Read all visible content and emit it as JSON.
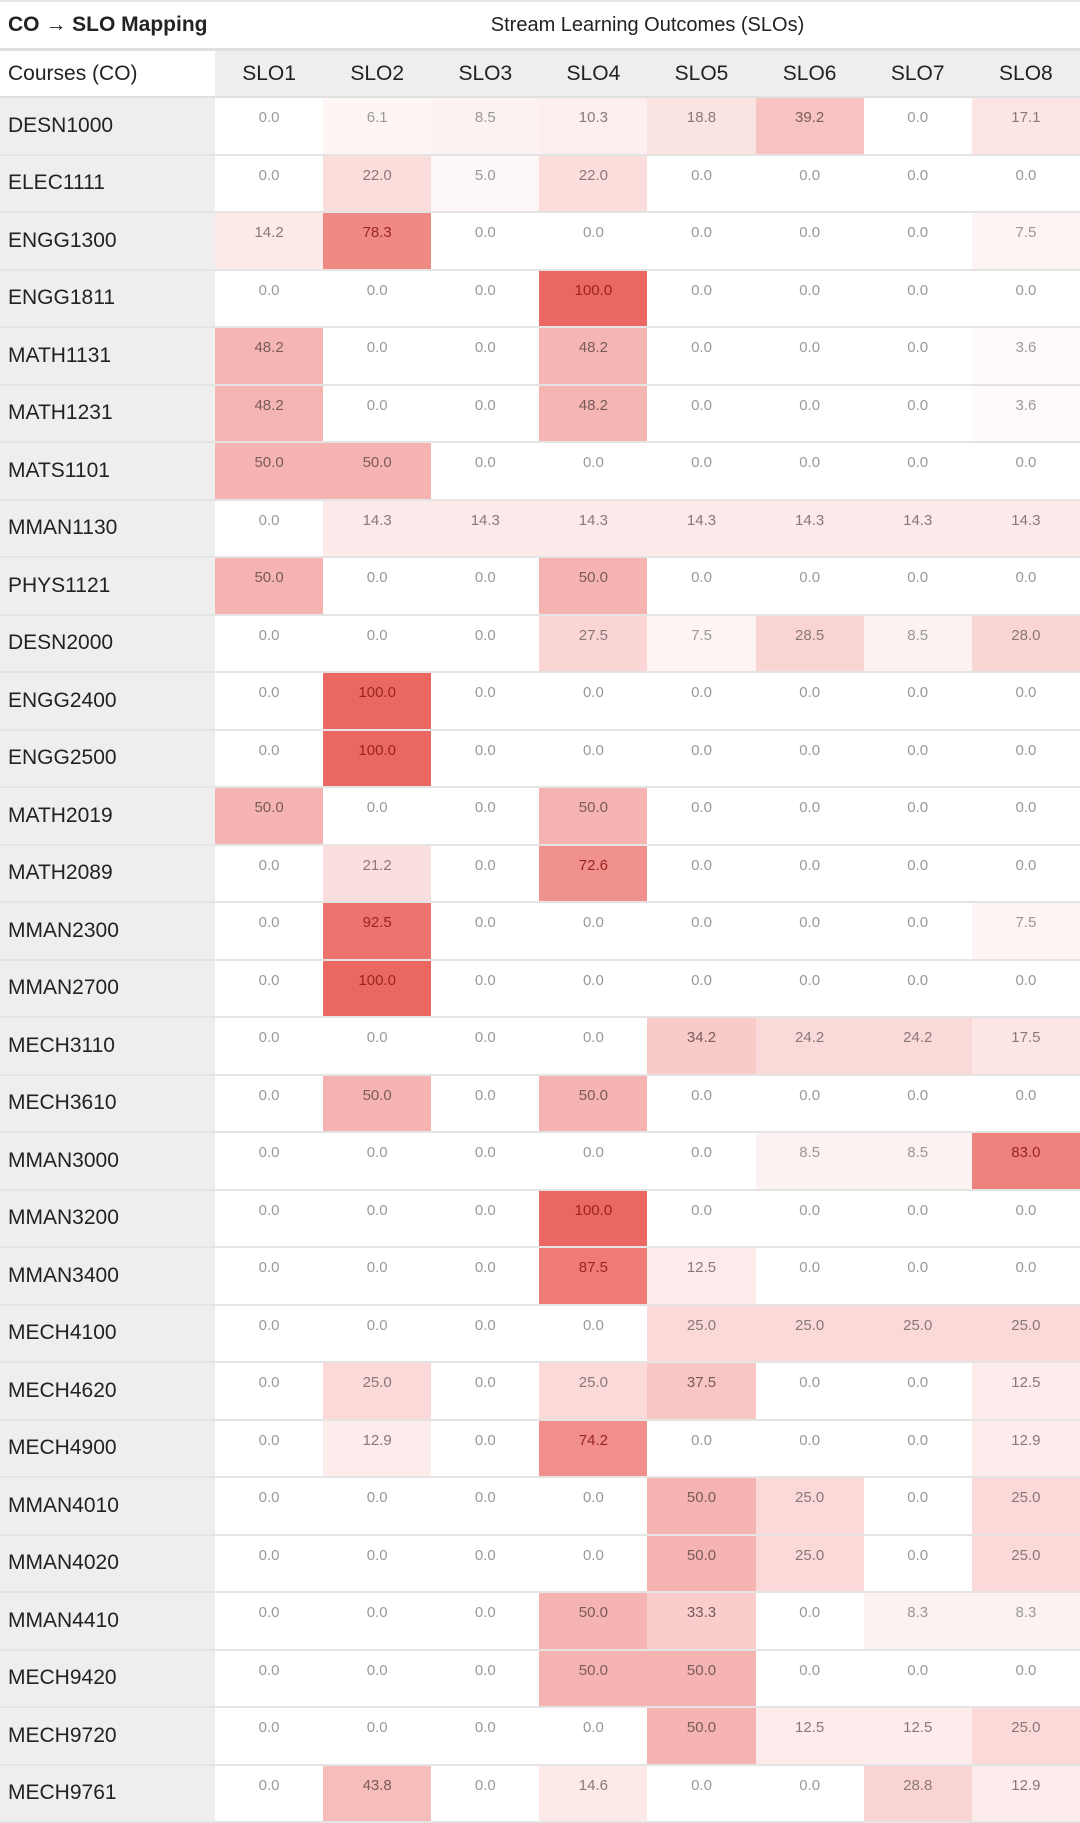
{
  "title": "CO → SLO Mapping",
  "stream_header": "Stream Learning Outcomes (SLOs)",
  "row_header": "Courses (CO)",
  "colors": {
    "high": "#eb6862",
    "low": "#ffffff",
    "label_bg": "#eeeeee"
  },
  "chart_data": {
    "type": "heatmap",
    "title": "CO → SLO Mapping",
    "xlabel": "Stream Learning Outcomes (SLOs)",
    "ylabel": "Courses (CO)",
    "columns": [
      "SLO1",
      "SLO2",
      "SLO3",
      "SLO4",
      "SLO5",
      "SLO6",
      "SLO7",
      "SLO8"
    ],
    "range": [
      0,
      100
    ],
    "rows": [
      {
        "course": "DESN1000",
        "values": [
          "0.0",
          "6.1",
          "8.5",
          "10.3",
          "18.8",
          "39.2",
          "0.0",
          "17.1"
        ]
      },
      {
        "course": "ELEC1111",
        "values": [
          "0.0",
          "22.0",
          "5.0",
          "22.0",
          "0.0",
          "0.0",
          "0.0",
          "0.0"
        ]
      },
      {
        "course": "ENGG1300",
        "values": [
          "14.2",
          "78.3",
          "0.0",
          "0.0",
          "0.0",
          "0.0",
          "0.0",
          "7.5"
        ]
      },
      {
        "course": "ENGG1811",
        "values": [
          "0.0",
          "0.0",
          "0.0",
          "100.0",
          "0.0",
          "0.0",
          "0.0",
          "0.0"
        ]
      },
      {
        "course": "MATH1131",
        "values": [
          "48.2",
          "0.0",
          "0.0",
          "48.2",
          "0.0",
          "0.0",
          "0.0",
          "3.6"
        ]
      },
      {
        "course": "MATH1231",
        "values": [
          "48.2",
          "0.0",
          "0.0",
          "48.2",
          "0.0",
          "0.0",
          "0.0",
          "3.6"
        ]
      },
      {
        "course": "MATS1101",
        "values": [
          "50.0",
          "50.0",
          "0.0",
          "0.0",
          "0.0",
          "0.0",
          "0.0",
          "0.0"
        ]
      },
      {
        "course": "MMAN1130",
        "values": [
          "0.0",
          "14.3",
          "14.3",
          "14.3",
          "14.3",
          "14.3",
          "14.3",
          "14.3"
        ]
      },
      {
        "course": "PHYS1121",
        "values": [
          "50.0",
          "0.0",
          "0.0",
          "50.0",
          "0.0",
          "0.0",
          "0.0",
          "0.0"
        ]
      },
      {
        "course": "DESN2000",
        "values": [
          "0.0",
          "0.0",
          "0.0",
          "27.5",
          "7.5",
          "28.5",
          "8.5",
          "28.0"
        ]
      },
      {
        "course": "ENGG2400",
        "values": [
          "0.0",
          "100.0",
          "0.0",
          "0.0",
          "0.0",
          "0.0",
          "0.0",
          "0.0"
        ]
      },
      {
        "course": "ENGG2500",
        "values": [
          "0.0",
          "100.0",
          "0.0",
          "0.0",
          "0.0",
          "0.0",
          "0.0",
          "0.0"
        ]
      },
      {
        "course": "MATH2019",
        "values": [
          "50.0",
          "0.0",
          "0.0",
          "50.0",
          "0.0",
          "0.0",
          "0.0",
          "0.0"
        ]
      },
      {
        "course": "MATH2089",
        "values": [
          "0.0",
          "21.2",
          "0.0",
          "72.6",
          "0.0",
          "0.0",
          "0.0",
          "0.0"
        ]
      },
      {
        "course": "MMAN2300",
        "values": [
          "0.0",
          "92.5",
          "0.0",
          "0.0",
          "0.0",
          "0.0",
          "0.0",
          "7.5"
        ]
      },
      {
        "course": "MMAN2700",
        "values": [
          "0.0",
          "100.0",
          "0.0",
          "0.0",
          "0.0",
          "0.0",
          "0.0",
          "0.0"
        ]
      },
      {
        "course": "MECH3110",
        "values": [
          "0.0",
          "0.0",
          "0.0",
          "0.0",
          "34.2",
          "24.2",
          "24.2",
          "17.5"
        ]
      },
      {
        "course": "MECH3610",
        "values": [
          "0.0",
          "50.0",
          "0.0",
          "50.0",
          "0.0",
          "0.0",
          "0.0",
          "0.0"
        ]
      },
      {
        "course": "MMAN3000",
        "values": [
          "0.0",
          "0.0",
          "0.0",
          "0.0",
          "0.0",
          "8.5",
          "8.5",
          "83.0"
        ]
      },
      {
        "course": "MMAN3200",
        "values": [
          "0.0",
          "0.0",
          "0.0",
          "100.0",
          "0.0",
          "0.0",
          "0.0",
          "0.0"
        ]
      },
      {
        "course": "MMAN3400",
        "values": [
          "0.0",
          "0.0",
          "0.0",
          "87.5",
          "12.5",
          "0.0",
          "0.0",
          "0.0"
        ]
      },
      {
        "course": "MECH4100",
        "values": [
          "0.0",
          "0.0",
          "0.0",
          "0.0",
          "25.0",
          "25.0",
          "25.0",
          "25.0"
        ]
      },
      {
        "course": "MECH4620",
        "values": [
          "0.0",
          "25.0",
          "0.0",
          "25.0",
          "37.5",
          "0.0",
          "0.0",
          "12.5"
        ]
      },
      {
        "course": "MECH4900",
        "values": [
          "0.0",
          "12.9",
          "0.0",
          "74.2",
          "0.0",
          "0.0",
          "0.0",
          "12.9"
        ]
      },
      {
        "course": "MMAN4010",
        "values": [
          "0.0",
          "0.0",
          "0.0",
          "0.0",
          "50.0",
          "25.0",
          "0.0",
          "25.0"
        ]
      },
      {
        "course": "MMAN4020",
        "values": [
          "0.0",
          "0.0",
          "0.0",
          "0.0",
          "50.0",
          "25.0",
          "0.0",
          "25.0"
        ]
      },
      {
        "course": "MMAN4410",
        "values": [
          "0.0",
          "0.0",
          "0.0",
          "50.0",
          "33.3",
          "0.0",
          "8.3",
          "8.3"
        ]
      },
      {
        "course": "MECH9420",
        "values": [
          "0.0",
          "0.0",
          "0.0",
          "50.0",
          "50.0",
          "0.0",
          "0.0",
          "0.0"
        ]
      },
      {
        "course": "MECH9720",
        "values": [
          "0.0",
          "0.0",
          "0.0",
          "0.0",
          "50.0",
          "12.5",
          "12.5",
          "25.0"
        ]
      },
      {
        "course": "MECH9761",
        "values": [
          "0.0",
          "43.8",
          "0.0",
          "14.6",
          "0.0",
          "0.0",
          "28.8",
          "12.9"
        ]
      }
    ]
  }
}
